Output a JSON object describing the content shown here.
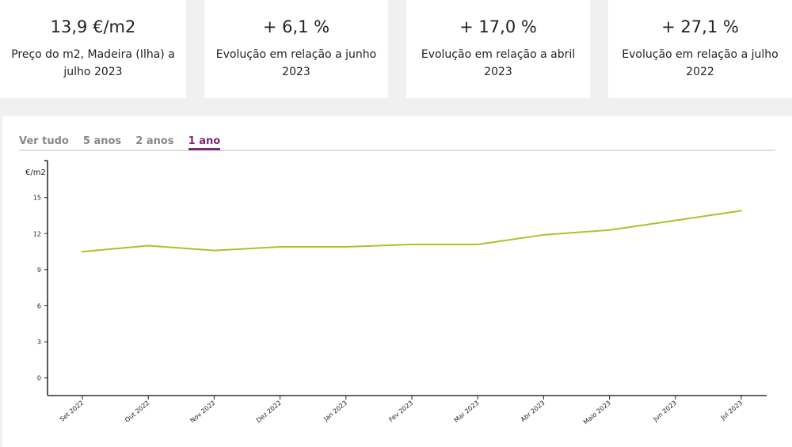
{
  "cards": [
    {
      "value": "13,9 €/m2",
      "label": "Preço do m2, Madeira (Ilha) a julho 2023"
    },
    {
      "value": "+ 6,1 %",
      "label": "Evolução em relação a junho 2023"
    },
    {
      "value": "+ 17,0 %",
      "label": "Evolução em relação a abril 2023"
    },
    {
      "value": "+ 27,1 %",
      "label": "Evolução em relação a julho 2022"
    }
  ],
  "tabs": [
    {
      "label": "Ver tudo",
      "active": false
    },
    {
      "label": "5 anos",
      "active": false
    },
    {
      "label": "2 anos",
      "active": false
    },
    {
      "label": "1 ano",
      "active": true
    }
  ],
  "colors": {
    "line": "#a8c42a",
    "accent": "#7d2a6e"
  },
  "chart_data": {
    "type": "line",
    "ylabel": "€/m2",
    "ylim": [
      -1.5,
      17
    ],
    "yticks": [
      0,
      3,
      6,
      9,
      12,
      15
    ],
    "categories": [
      "Set 2022",
      "Out 2022",
      "Nov 2022",
      "Dez 2022",
      "Jan 2023",
      "Fev 2023",
      "Mar 2023",
      "Abr 2023",
      "Maio 2023",
      "Jun 2023",
      "Jul 2023"
    ],
    "values": [
      10.5,
      11.0,
      10.6,
      10.9,
      10.9,
      11.1,
      11.1,
      11.9,
      12.3,
      13.1,
      13.9
    ],
    "grid": false
  }
}
